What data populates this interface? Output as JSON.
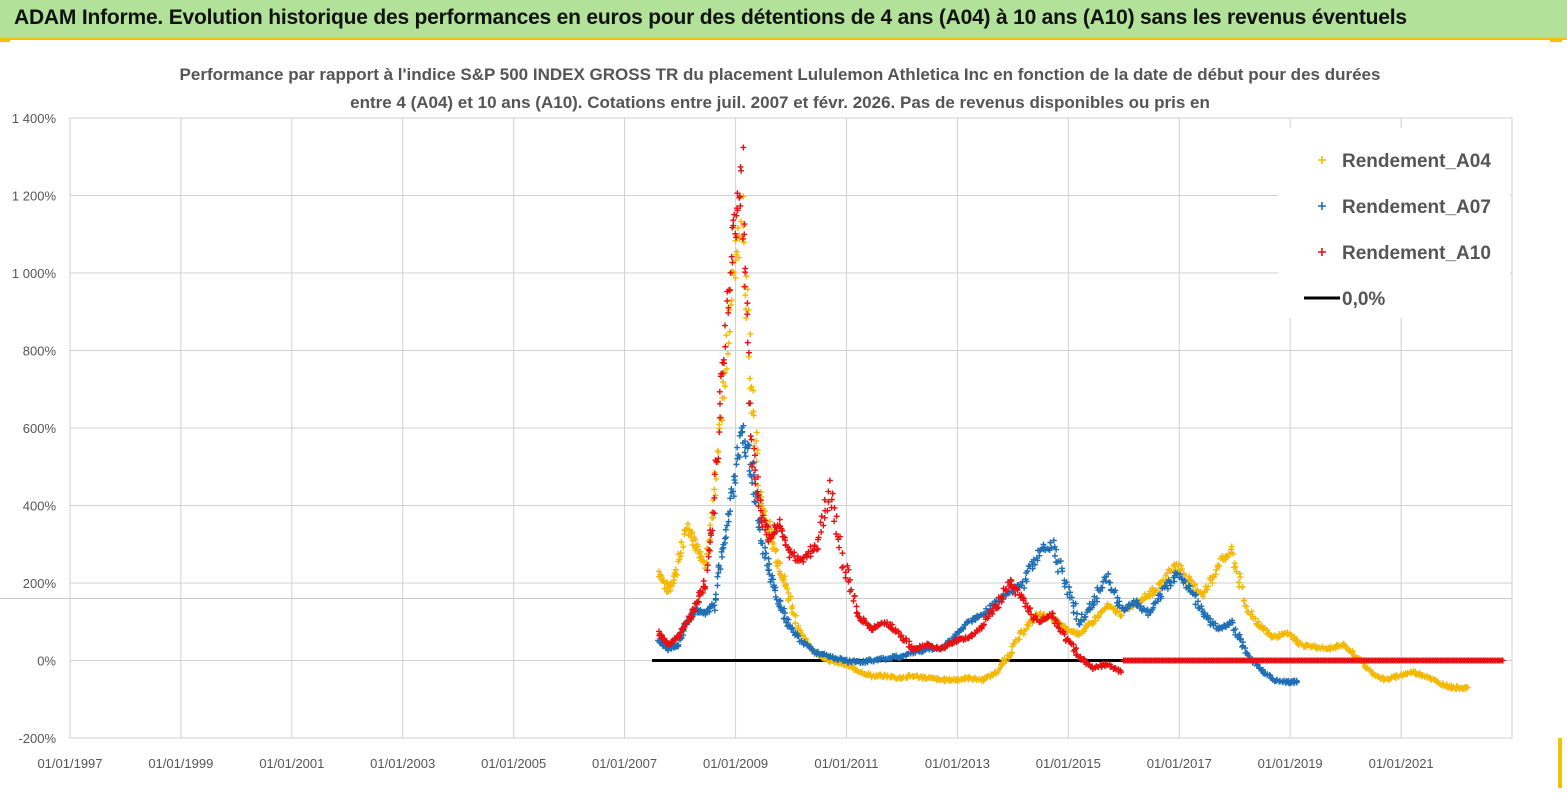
{
  "banner": {
    "title": "ADAM Informe. Evolution historique des performances en euros pour des détentions de 4 ans (A04) à 10 ans (A10) sans les revenus éventuels"
  },
  "colors": {
    "a04": "#f5b800",
    "a07": "#1f6fb5",
    "a10": "#e81010",
    "zero": "#000000",
    "grid": "#d0d0d0",
    "banner": "#b2e29a"
  },
  "chart_data": {
    "type": "scatter",
    "title_line1": "Performance par rapport à l'indice S&P 500 INDEX GROSS TR  du placement Lululemon Athletica Inc en fonction de la date de début pour des durées",
    "title_line2": "entre 4 (A04) et 10 ans (A10).  Cotations entre juil. 2007 et févr. 2026. Pas de revenus disponibles ou pris en",
    "x_ticks": [
      "01/01/1997",
      "01/01/1999",
      "01/01/2001",
      "01/01/2003",
      "01/01/2005",
      "01/01/2007",
      "01/01/2009",
      "01/01/2011",
      "01/01/2013",
      "01/01/2015",
      "01/01/2017",
      "01/01/2019",
      "01/01/2021"
    ],
    "y_ticks": [
      "-200%",
      "0%",
      "200%",
      "400%",
      "600%",
      "800%",
      "1 000%",
      "1 200%",
      "1 400%"
    ],
    "xlim": [
      "1997-01-01",
      "2023-01-01"
    ],
    "ylim": [
      -200,
      1400
    ],
    "legend_position": "top-right",
    "series": [
      {
        "name": "Rendement_A04",
        "points": [
          [
            "2007-08",
            230
          ],
          [
            "2007-10",
            180
          ],
          [
            "2007-12",
            240
          ],
          [
            "2008-02",
            350
          ],
          [
            "2008-04",
            300
          ],
          [
            "2008-06",
            250
          ],
          [
            "2008-08",
            430
          ],
          [
            "2008-10",
            700
          ],
          [
            "2008-12",
            1000
          ],
          [
            "2009-02",
            1130
          ],
          [
            "2009-04",
            700
          ],
          [
            "2009-06",
            420
          ],
          [
            "2009-08",
            330
          ],
          [
            "2009-10",
            250
          ],
          [
            "2009-12",
            170
          ],
          [
            "2010-03",
            60
          ],
          [
            "2010-06",
            20
          ],
          [
            "2010-09",
            0
          ],
          [
            "2010-12",
            -10
          ],
          [
            "2011-03",
            -25
          ],
          [
            "2011-06",
            -40
          ],
          [
            "2011-09",
            -40
          ],
          [
            "2011-12",
            -45
          ],
          [
            "2012-03",
            -40
          ],
          [
            "2012-06",
            -45
          ],
          [
            "2012-09",
            -50
          ],
          [
            "2012-12",
            -50
          ],
          [
            "2013-03",
            -45
          ],
          [
            "2013-06",
            -50
          ],
          [
            "2013-09",
            -30
          ],
          [
            "2013-12",
            20
          ],
          [
            "2014-03",
            80
          ],
          [
            "2014-06",
            120
          ],
          [
            "2014-09",
            110
          ],
          [
            "2014-12",
            80
          ],
          [
            "2015-03",
            70
          ],
          [
            "2015-06",
            100
          ],
          [
            "2015-09",
            140
          ],
          [
            "2015-12",
            120
          ],
          [
            "2016-03",
            150
          ],
          [
            "2016-06",
            170
          ],
          [
            "2016-09",
            200
          ],
          [
            "2016-12",
            250
          ],
          [
            "2017-03",
            200
          ],
          [
            "2017-06",
            170
          ],
          [
            "2017-09",
            250
          ],
          [
            "2017-12",
            280
          ],
          [
            "2018-03",
            140
          ],
          [
            "2018-06",
            90
          ],
          [
            "2018-09",
            60
          ],
          [
            "2018-12",
            70
          ],
          [
            "2019-03",
            40
          ],
          [
            "2019-06",
            35
          ],
          [
            "2019-09",
            30
          ],
          [
            "2019-12",
            40
          ],
          [
            "2020-03",
            10
          ],
          [
            "2020-06",
            -30
          ],
          [
            "2020-09",
            -50
          ],
          [
            "2020-12",
            -40
          ],
          [
            "2021-03",
            -30
          ],
          [
            "2021-06",
            -40
          ],
          [
            "2021-09",
            -60
          ],
          [
            "2021-12",
            -70
          ],
          [
            "2022-03",
            -70
          ]
        ]
      },
      {
        "name": "Rendement_A07",
        "points": [
          [
            "2007-08",
            50
          ],
          [
            "2007-10",
            30
          ],
          [
            "2007-12",
            40
          ],
          [
            "2008-02",
            100
          ],
          [
            "2008-04",
            130
          ],
          [
            "2008-06",
            120
          ],
          [
            "2008-08",
            150
          ],
          [
            "2008-10",
            300
          ],
          [
            "2008-12",
            450
          ],
          [
            "2009-02",
            600
          ],
          [
            "2009-04",
            500
          ],
          [
            "2009-06",
            320
          ],
          [
            "2009-08",
            220
          ],
          [
            "2009-10",
            150
          ],
          [
            "2009-12",
            90
          ],
          [
            "2010-03",
            50
          ],
          [
            "2010-06",
            20
          ],
          [
            "2010-09",
            10
          ],
          [
            "2010-12",
            0
          ],
          [
            "2011-03",
            -5
          ],
          [
            "2011-06",
            0
          ],
          [
            "2011-09",
            5
          ],
          [
            "2011-12",
            10
          ],
          [
            "2012-03",
            20
          ],
          [
            "2012-06",
            30
          ],
          [
            "2012-09",
            30
          ],
          [
            "2012-12",
            60
          ],
          [
            "2013-03",
            100
          ],
          [
            "2013-06",
            120
          ],
          [
            "2013-09",
            150
          ],
          [
            "2013-12",
            180
          ],
          [
            "2014-03",
            200
          ],
          [
            "2014-06",
            280
          ],
          [
            "2014-09",
            300
          ],
          [
            "2014-12",
            200
          ],
          [
            "2015-03",
            100
          ],
          [
            "2015-06",
            150
          ],
          [
            "2015-09",
            220
          ],
          [
            "2015-12",
            130
          ],
          [
            "2016-03",
            150
          ],
          [
            "2016-06",
            120
          ],
          [
            "2016-09",
            180
          ],
          [
            "2016-12",
            220
          ],
          [
            "2017-03",
            180
          ],
          [
            "2017-06",
            120
          ],
          [
            "2017-09",
            80
          ],
          [
            "2017-12",
            100
          ],
          [
            "2018-03",
            20
          ],
          [
            "2018-06",
            -20
          ],
          [
            "2018-09",
            -50
          ],
          [
            "2018-12",
            -55
          ],
          [
            "2019-02",
            -55
          ]
        ]
      },
      {
        "name": "Rendement_A10",
        "points": [
          [
            "2007-08",
            70
          ],
          [
            "2007-10",
            40
          ],
          [
            "2007-12",
            60
          ],
          [
            "2008-02",
            100
          ],
          [
            "2008-04",
            140
          ],
          [
            "2008-06",
            200
          ],
          [
            "2008-08",
            400
          ],
          [
            "2008-10",
            800
          ],
          [
            "2008-12",
            1100
          ],
          [
            "2009-02",
            1250
          ],
          [
            "2009-04",
            550
          ],
          [
            "2009-06",
            380
          ],
          [
            "2009-08",
            320
          ],
          [
            "2009-10",
            350
          ],
          [
            "2009-12",
            280
          ],
          [
            "2010-03",
            250
          ],
          [
            "2010-06",
            300
          ],
          [
            "2010-09",
            440
          ],
          [
            "2010-12",
            250
          ],
          [
            "2011-03",
            120
          ],
          [
            "2011-06",
            80
          ],
          [
            "2011-09",
            100
          ],
          [
            "2011-12",
            70
          ],
          [
            "2012-03",
            30
          ],
          [
            "2012-06",
            40
          ],
          [
            "2012-09",
            30
          ],
          [
            "2012-12",
            50
          ],
          [
            "2013-03",
            60
          ],
          [
            "2013-06",
            90
          ],
          [
            "2013-09",
            140
          ],
          [
            "2013-12",
            200
          ],
          [
            "2014-03",
            150
          ],
          [
            "2014-06",
            100
          ],
          [
            "2014-09",
            120
          ],
          [
            "2014-12",
            60
          ],
          [
            "2015-03",
            10
          ],
          [
            "2015-06",
            -20
          ],
          [
            "2015-09",
            -10
          ],
          [
            "2015-12",
            -30
          ]
        ]
      }
    ],
    "zero_line": {
      "name": "0,0%",
      "value": 0,
      "x_range": [
        "2007-07-01",
        "2022-11-01"
      ]
    },
    "a10_flat": {
      "value": 0,
      "x_range": [
        "2016-01-01",
        "2022-11-01"
      ]
    }
  }
}
